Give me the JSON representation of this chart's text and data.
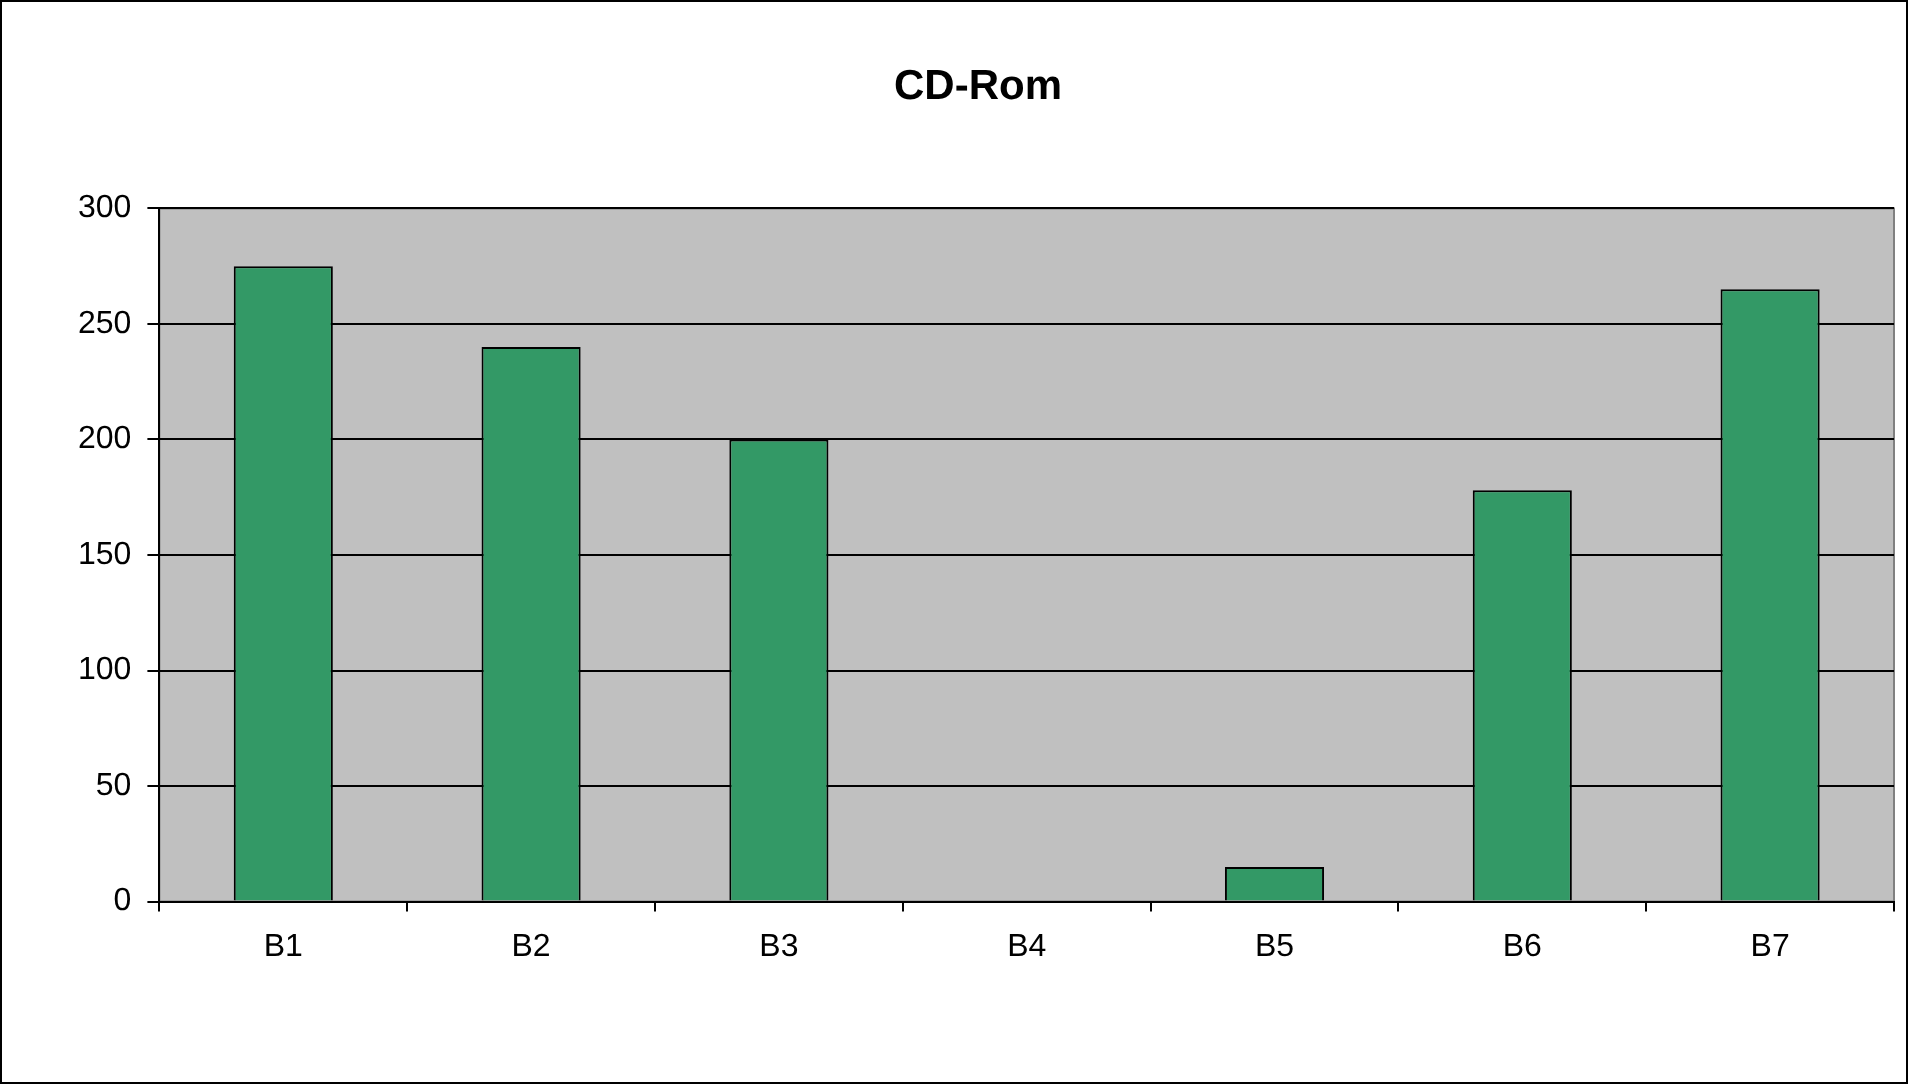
{
  "chart_data": {
    "type": "bar",
    "title": "CD-Rom",
    "categories": [
      "B1",
      "B2",
      "B3",
      "B4",
      "B5",
      "B6",
      "B7"
    ],
    "values": [
      275,
      240,
      200,
      0,
      15,
      178,
      265
    ],
    "color": "#339966",
    "ylim": [
      0,
      300
    ],
    "yticks": [
      0,
      50,
      100,
      150,
      200,
      250,
      300
    ],
    "grid": "y",
    "legend": false
  }
}
